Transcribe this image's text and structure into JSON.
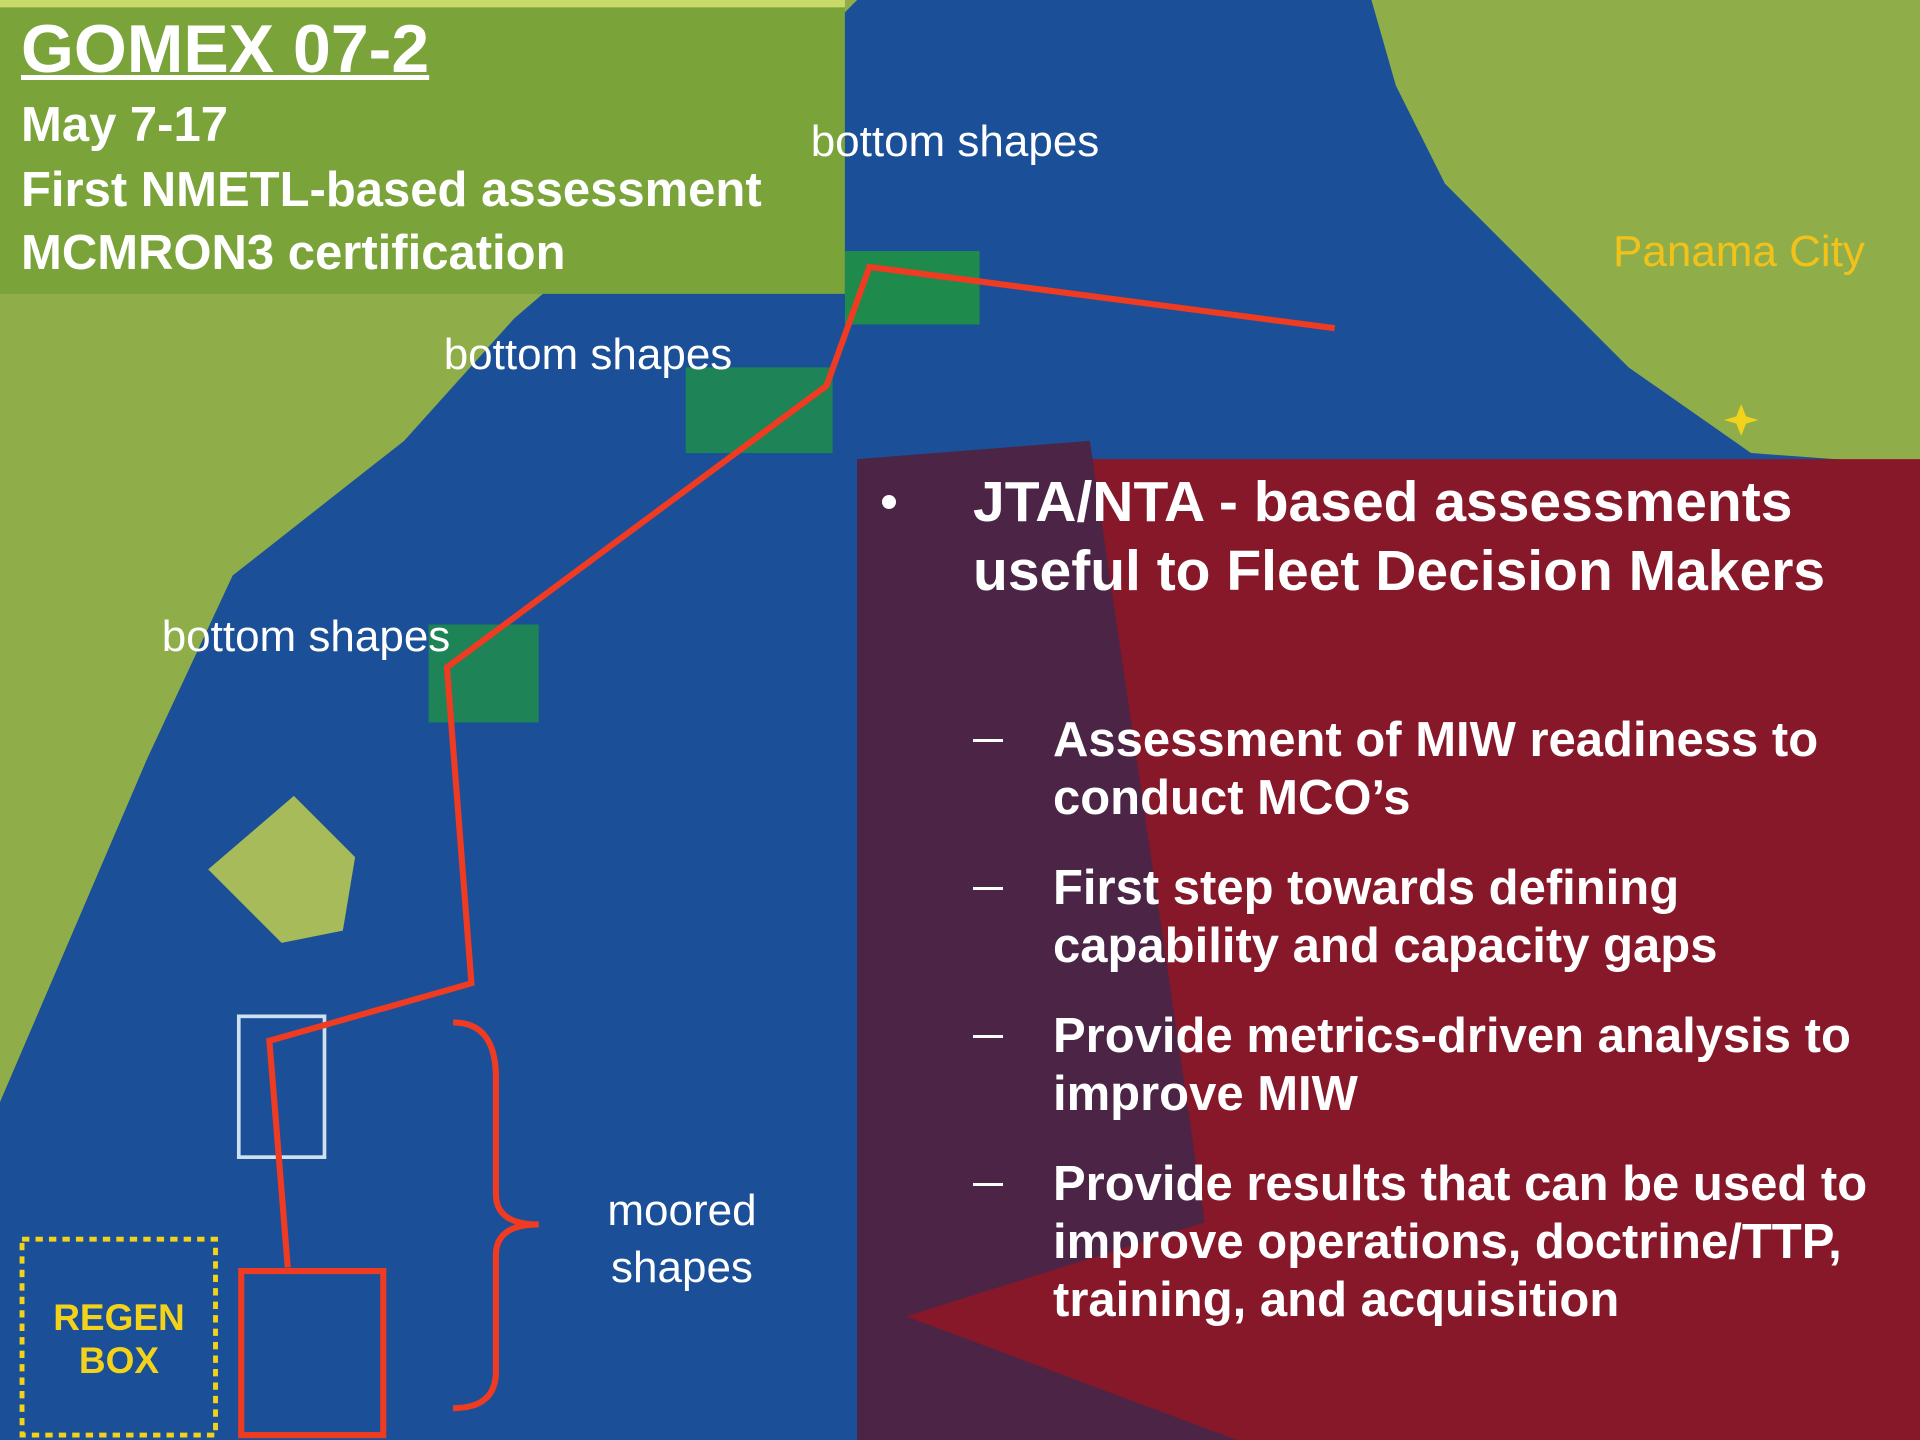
{
  "header": {
    "title": "GOMEX 07-2",
    "lines": [
      "May 7-17",
      "First NMETL-based assessment",
      "MCMRON3 certification"
    ]
  },
  "map": {
    "labels": [
      "bottom shapes",
      "bottom shapes",
      "bottom shapes",
      "moored shapes",
      "Panama City",
      "REGEN BOX"
    ]
  },
  "panel": {
    "bullet": "JTA/NTA - based assessments useful to Fleet Decision Makers",
    "subitems": [
      "Assessment of MIW readiness to conduct MCO’s",
      "First step towards defining capability and capacity gaps",
      "Provide metrics-driven analysis to improve MIW",
      "Provide results that can be used to improve operations, doctrine/TTP, training, and acquisition"
    ]
  }
}
